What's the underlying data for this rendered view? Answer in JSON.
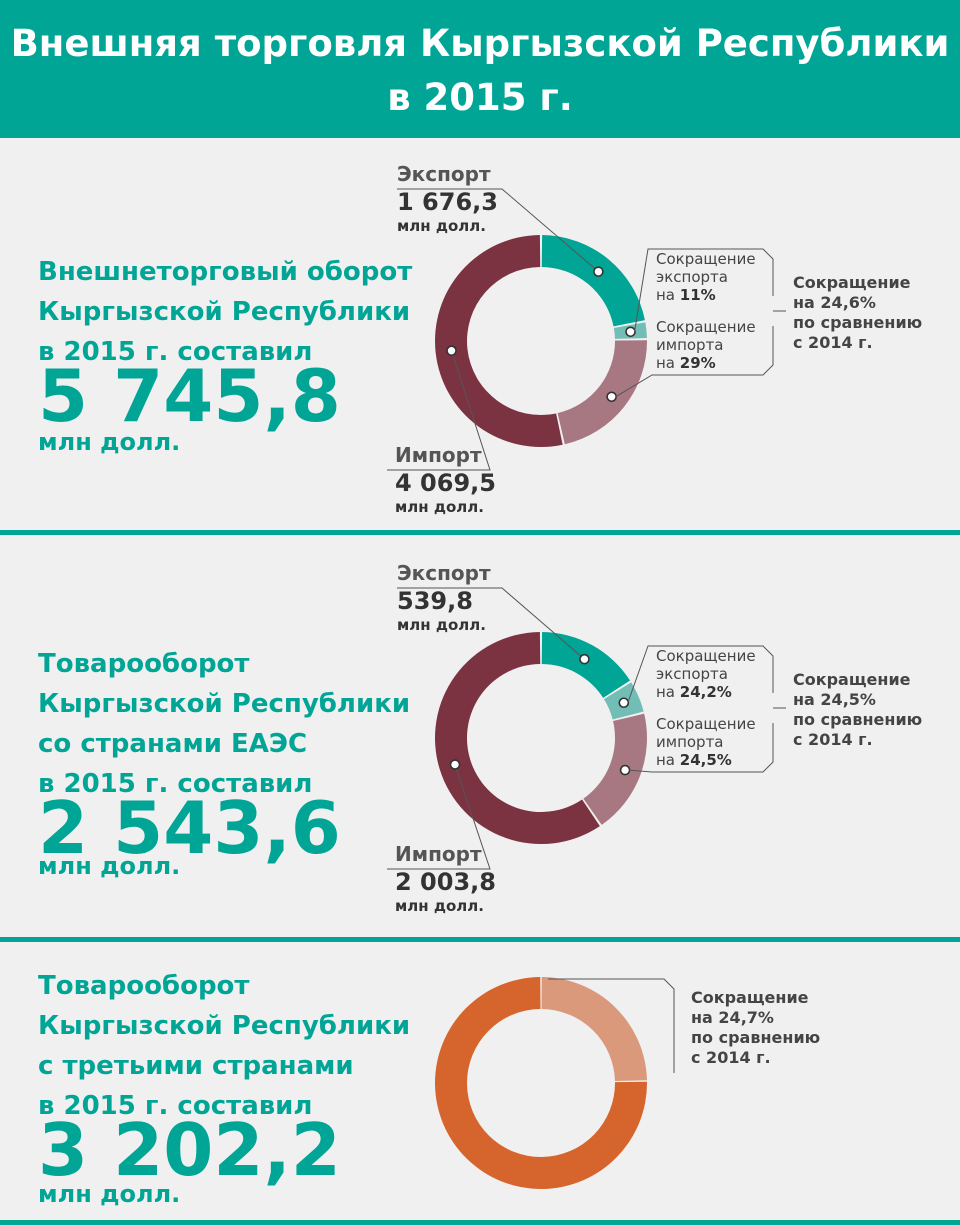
{
  "header": {
    "line1": "Внешняя торговля Кыргызской Республики",
    "line2": "в 2015 г."
  },
  "colors": {
    "teal": "#00a596",
    "teal_light": "#72bdb6",
    "maroon": "#7b3342",
    "maroon_light": "#a77881",
    "orange": "#d5652c",
    "orange_light": "#d9997a",
    "background": "#f0f0f0"
  },
  "sections": [
    {
      "lead": [
        "Внешнеторговый оборот",
        "Кыргызской Республики",
        "в 2015 г. составил"
      ],
      "total": "5 745,8",
      "unit": "млн долл."
    },
    {
      "lead": [
        "Товарооборот",
        "Кыргызской Республики",
        "со странами ЕАЭС",
        "в 2015 г. составил"
      ],
      "total": "2 543,6",
      "unit": "млн долл."
    },
    {
      "lead": [
        "Товарооборот",
        "Кыргызской Республики",
        "с третьими странами",
        "в 2015 г. составил"
      ],
      "total": "3 202,2",
      "unit": "млн долл."
    }
  ],
  "chart_data": [
    {
      "type": "pie",
      "variant": "donut",
      "segments": [
        {
          "name": "Экспорт",
          "value": 1676.3,
          "label_value": "1 676,3",
          "unit": "млн долл.",
          "color": "#00a596"
        },
        {
          "name": "Сокращение экспорта",
          "value": 206.0,
          "color": "#72bdb6"
        },
        {
          "name": "Сокращение импорта",
          "value": 1663.0,
          "color": "#a77881"
        },
        {
          "name": "Импорт",
          "value": 4069.5,
          "label_value": "4 069,5",
          "unit": "млн долл.",
          "color": "#7b3342"
        }
      ],
      "notes": {
        "export_decline": [
          "Сокращение",
          "экспорта",
          "на ",
          "11%"
        ],
        "import_decline": [
          "Сокращение",
          "импорта",
          "на ",
          "29%"
        ],
        "total_decline": [
          "Сокращение",
          "на 24,6%",
          "по сравнению",
          "с 2014 г."
        ]
      }
    },
    {
      "type": "pie",
      "variant": "donut",
      "segments": [
        {
          "name": "Экспорт",
          "value": 539.8,
          "label_value": "539,8",
          "unit": "млн долл.",
          "color": "#00a596"
        },
        {
          "name": "Сокращение экспорта",
          "value": 172.0,
          "color": "#72bdb6"
        },
        {
          "name": "Сокращение импорта",
          "value": 650.0,
          "color": "#a77881"
        },
        {
          "name": "Импорт",
          "value": 2003.8,
          "label_value": "2 003,8",
          "unit": "млн долл.",
          "color": "#7b3342"
        }
      ],
      "notes": {
        "export_decline": [
          "Сокращение",
          "экспорта",
          "на ",
          "24,2%"
        ],
        "import_decline": [
          "Сокращение",
          "импорта",
          "на ",
          "24,5%"
        ],
        "total_decline": [
          "Сокращение",
          "на 24,5%",
          "по сравнению",
          "с 2014 г."
        ]
      }
    },
    {
      "type": "pie",
      "variant": "donut",
      "segments": [
        {
          "name": "Сокращение",
          "value": 1050.0,
          "color": "#d9997a"
        },
        {
          "name": "Товарооборот с третьими странами",
          "value": 3202.2,
          "color": "#d5652c"
        }
      ],
      "notes": {
        "total_decline": [
          "Сокращение",
          "на 24,7%",
          "по сравнению",
          "с 2014 г."
        ]
      }
    }
  ]
}
